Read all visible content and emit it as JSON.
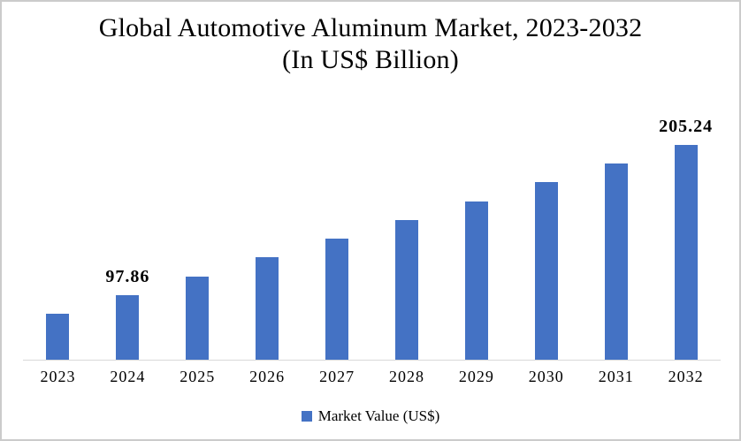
{
  "title": {
    "line1": "Global Automotive Aluminum Market, 2023-2032",
    "line2": "(In US$ Billion)"
  },
  "legend": {
    "label": "Market Value (US$)",
    "marker_color": "#4472C4"
  },
  "colors": {
    "bar": "#4472C4",
    "axis_line": "#D9D9D9",
    "background": "#FFFFFF",
    "border": "#CBCBCB",
    "text": "#000000"
  },
  "chart_data": {
    "type": "bar",
    "title": "Global Automotive Aluminum Market, 2023-2032 (In US$ Billion)",
    "xlabel": "",
    "ylabel": "",
    "categories": [
      "2023",
      "2024",
      "2025",
      "2026",
      "2027",
      "2028",
      "2029",
      "2030",
      "2031",
      "2032"
    ],
    "series": [
      {
        "name": "Market Value (US$)",
        "values": [
          84.44,
          97.86,
          111.28,
          124.7,
          138.13,
          151.55,
          164.97,
          178.39,
          191.82,
          205.24
        ]
      }
    ],
    "data_labels": [
      null,
      "97.86",
      null,
      null,
      null,
      null,
      null,
      null,
      null,
      "205.24"
    ],
    "values_estimated_except_labeled": true,
    "ylim": [
      51.7,
      225.4
    ],
    "grid": false,
    "y_axis_visible": false,
    "legend_position": "bottom"
  }
}
